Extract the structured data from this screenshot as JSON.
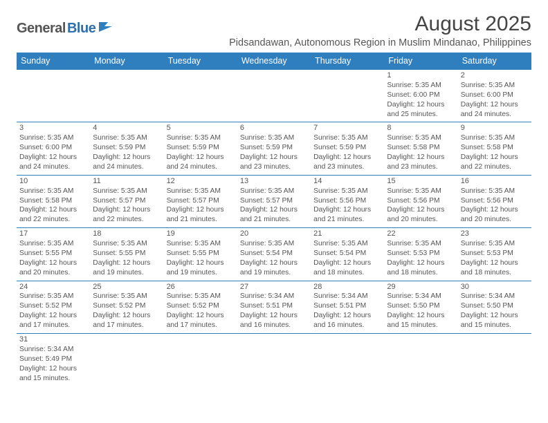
{
  "logo": {
    "text_a": "General",
    "text_b": "Blue"
  },
  "title": "August 2025",
  "subtitle": "Pidsandawan, Autonomous Region in Muslim Mindanao, Philippines",
  "headers": [
    "Sunday",
    "Monday",
    "Tuesday",
    "Wednesday",
    "Thursday",
    "Friday",
    "Saturday"
  ],
  "colors": {
    "header_bg": "#2f7fbf",
    "header_fg": "#ffffff",
    "border": "#2f7fbf",
    "text": "#555555"
  },
  "weeks": [
    [
      null,
      null,
      null,
      null,
      null,
      {
        "n": "1",
        "sr": "Sunrise: 5:35 AM",
        "ss": "Sunset: 6:00 PM",
        "d1": "Daylight: 12 hours",
        "d2": "and 25 minutes."
      },
      {
        "n": "2",
        "sr": "Sunrise: 5:35 AM",
        "ss": "Sunset: 6:00 PM",
        "d1": "Daylight: 12 hours",
        "d2": "and 24 minutes."
      }
    ],
    [
      {
        "n": "3",
        "sr": "Sunrise: 5:35 AM",
        "ss": "Sunset: 6:00 PM",
        "d1": "Daylight: 12 hours",
        "d2": "and 24 minutes."
      },
      {
        "n": "4",
        "sr": "Sunrise: 5:35 AM",
        "ss": "Sunset: 5:59 PM",
        "d1": "Daylight: 12 hours",
        "d2": "and 24 minutes."
      },
      {
        "n": "5",
        "sr": "Sunrise: 5:35 AM",
        "ss": "Sunset: 5:59 PM",
        "d1": "Daylight: 12 hours",
        "d2": "and 24 minutes."
      },
      {
        "n": "6",
        "sr": "Sunrise: 5:35 AM",
        "ss": "Sunset: 5:59 PM",
        "d1": "Daylight: 12 hours",
        "d2": "and 23 minutes."
      },
      {
        "n": "7",
        "sr": "Sunrise: 5:35 AM",
        "ss": "Sunset: 5:59 PM",
        "d1": "Daylight: 12 hours",
        "d2": "and 23 minutes."
      },
      {
        "n": "8",
        "sr": "Sunrise: 5:35 AM",
        "ss": "Sunset: 5:58 PM",
        "d1": "Daylight: 12 hours",
        "d2": "and 23 minutes."
      },
      {
        "n": "9",
        "sr": "Sunrise: 5:35 AM",
        "ss": "Sunset: 5:58 PM",
        "d1": "Daylight: 12 hours",
        "d2": "and 22 minutes."
      }
    ],
    [
      {
        "n": "10",
        "sr": "Sunrise: 5:35 AM",
        "ss": "Sunset: 5:58 PM",
        "d1": "Daylight: 12 hours",
        "d2": "and 22 minutes."
      },
      {
        "n": "11",
        "sr": "Sunrise: 5:35 AM",
        "ss": "Sunset: 5:57 PM",
        "d1": "Daylight: 12 hours",
        "d2": "and 22 minutes."
      },
      {
        "n": "12",
        "sr": "Sunrise: 5:35 AM",
        "ss": "Sunset: 5:57 PM",
        "d1": "Daylight: 12 hours",
        "d2": "and 21 minutes."
      },
      {
        "n": "13",
        "sr": "Sunrise: 5:35 AM",
        "ss": "Sunset: 5:57 PM",
        "d1": "Daylight: 12 hours",
        "d2": "and 21 minutes."
      },
      {
        "n": "14",
        "sr": "Sunrise: 5:35 AM",
        "ss": "Sunset: 5:56 PM",
        "d1": "Daylight: 12 hours",
        "d2": "and 21 minutes."
      },
      {
        "n": "15",
        "sr": "Sunrise: 5:35 AM",
        "ss": "Sunset: 5:56 PM",
        "d1": "Daylight: 12 hours",
        "d2": "and 20 minutes."
      },
      {
        "n": "16",
        "sr": "Sunrise: 5:35 AM",
        "ss": "Sunset: 5:56 PM",
        "d1": "Daylight: 12 hours",
        "d2": "and 20 minutes."
      }
    ],
    [
      {
        "n": "17",
        "sr": "Sunrise: 5:35 AM",
        "ss": "Sunset: 5:55 PM",
        "d1": "Daylight: 12 hours",
        "d2": "and 20 minutes."
      },
      {
        "n": "18",
        "sr": "Sunrise: 5:35 AM",
        "ss": "Sunset: 5:55 PM",
        "d1": "Daylight: 12 hours",
        "d2": "and 19 minutes."
      },
      {
        "n": "19",
        "sr": "Sunrise: 5:35 AM",
        "ss": "Sunset: 5:55 PM",
        "d1": "Daylight: 12 hours",
        "d2": "and 19 minutes."
      },
      {
        "n": "20",
        "sr": "Sunrise: 5:35 AM",
        "ss": "Sunset: 5:54 PM",
        "d1": "Daylight: 12 hours",
        "d2": "and 19 minutes."
      },
      {
        "n": "21",
        "sr": "Sunrise: 5:35 AM",
        "ss": "Sunset: 5:54 PM",
        "d1": "Daylight: 12 hours",
        "d2": "and 18 minutes."
      },
      {
        "n": "22",
        "sr": "Sunrise: 5:35 AM",
        "ss": "Sunset: 5:53 PM",
        "d1": "Daylight: 12 hours",
        "d2": "and 18 minutes."
      },
      {
        "n": "23",
        "sr": "Sunrise: 5:35 AM",
        "ss": "Sunset: 5:53 PM",
        "d1": "Daylight: 12 hours",
        "d2": "and 18 minutes."
      }
    ],
    [
      {
        "n": "24",
        "sr": "Sunrise: 5:35 AM",
        "ss": "Sunset: 5:52 PM",
        "d1": "Daylight: 12 hours",
        "d2": "and 17 minutes."
      },
      {
        "n": "25",
        "sr": "Sunrise: 5:35 AM",
        "ss": "Sunset: 5:52 PM",
        "d1": "Daylight: 12 hours",
        "d2": "and 17 minutes."
      },
      {
        "n": "26",
        "sr": "Sunrise: 5:35 AM",
        "ss": "Sunset: 5:52 PM",
        "d1": "Daylight: 12 hours",
        "d2": "and 17 minutes."
      },
      {
        "n": "27",
        "sr": "Sunrise: 5:34 AM",
        "ss": "Sunset: 5:51 PM",
        "d1": "Daylight: 12 hours",
        "d2": "and 16 minutes."
      },
      {
        "n": "28",
        "sr": "Sunrise: 5:34 AM",
        "ss": "Sunset: 5:51 PM",
        "d1": "Daylight: 12 hours",
        "d2": "and 16 minutes."
      },
      {
        "n": "29",
        "sr": "Sunrise: 5:34 AM",
        "ss": "Sunset: 5:50 PM",
        "d1": "Daylight: 12 hours",
        "d2": "and 15 minutes."
      },
      {
        "n": "30",
        "sr": "Sunrise: 5:34 AM",
        "ss": "Sunset: 5:50 PM",
        "d1": "Daylight: 12 hours",
        "d2": "and 15 minutes."
      }
    ],
    [
      {
        "n": "31",
        "sr": "Sunrise: 5:34 AM",
        "ss": "Sunset: 5:49 PM",
        "d1": "Daylight: 12 hours",
        "d2": "and 15 minutes."
      },
      null,
      null,
      null,
      null,
      null,
      null
    ]
  ]
}
